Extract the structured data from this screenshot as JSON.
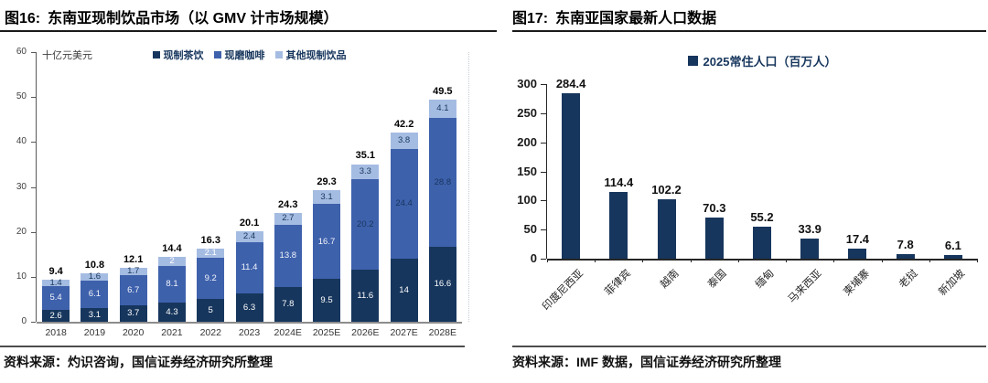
{
  "chart_data": [
    {
      "type": "bar",
      "stacked": true,
      "figure_label": "图16:",
      "title": "东南亚现制饮品市场（以 GMV 计市场规模）",
      "unit_label": "十亿元美元",
      "legend_position": "top",
      "ylim": [
        0,
        60
      ],
      "y_ticks": [
        0,
        10,
        20,
        30,
        40,
        50,
        60
      ],
      "grid": false,
      "categories": [
        "2018",
        "2019",
        "2020",
        "2021",
        "2022",
        "2023",
        "2024E",
        "2025E",
        "2026E",
        "2027E",
        "2028E"
      ],
      "series": [
        {
          "name": "现制茶饮",
          "color": "#17365D",
          "values": [
            2.6,
            3.1,
            3.7,
            4.3,
            5,
            6.3,
            7.8,
            9.5,
            11.6,
            14,
            16.6
          ],
          "labels": [
            "2.6",
            "3.1",
            "3.7",
            "4.3",
            "5",
            "6.3",
            "7.8",
            "9.5",
            "11.6",
            "14",
            "16.6"
          ],
          "label_colors": [
            "#ffffff",
            "#ffffff",
            "#ffffff",
            "#ffffff",
            "#ffffff",
            "#ffffff",
            "#ffffff",
            "#ffffff",
            "#ffffff",
            "#ffffff",
            "#ffffff"
          ]
        },
        {
          "name": "现磨咖啡",
          "color": "#3E61AC",
          "values": [
            5.4,
            6.1,
            6.7,
            8.1,
            9.2,
            11.4,
            13.8,
            16.7,
            20.2,
            24.4,
            28.8
          ],
          "labels": [
            "5.4",
            "6.1",
            "6.7",
            "8.1",
            "9.2",
            "11.4",
            "13.8",
            "16.7",
            "20.2",
            "24.4",
            "28.8"
          ],
          "label_colors": [
            "#f2f5fa",
            "#f2f5fa",
            "#f2f5fa",
            "#f2f5fa",
            "#f2f5fa",
            "#f2f5fa",
            "#f2f5fa",
            "#f2f5fa",
            "#17365D",
            "#17365D",
            "#17365D"
          ]
        },
        {
          "name": "其他现制饮品",
          "color": "#A5BCE2",
          "values": [
            1.4,
            1.6,
            1.7,
            2,
            2.1,
            2.4,
            2.7,
            3.1,
            3.3,
            3.8,
            4.1
          ],
          "labels": [
            "1.4",
            "1.6",
            "1.7",
            "2",
            "2.1",
            "2.4",
            "2.7",
            "3.1",
            "3.3",
            "3.8",
            "4.1"
          ],
          "label_colors": [
            "#17365D",
            "#17365D",
            "#17365D",
            "#ffffff",
            "#ffffff",
            "#17365D",
            "#17365D",
            "#17365D",
            "#17365D",
            "#17365D",
            "#17365D"
          ]
        }
      ],
      "totals": [
        "9.4",
        "10.8",
        "12.1",
        "14.4",
        "16.3",
        "20.1",
        "24.3",
        "29.3",
        "35.1",
        "42.2",
        "49.5"
      ],
      "source": "资料来源：灼识咨询，国信证券经济研究所整理"
    },
    {
      "type": "bar",
      "stacked": false,
      "figure_label": "图17:",
      "title": "东南亚国家最新人口数据",
      "legend": "2025常住人口（百万人）",
      "legend_position": "top",
      "ylim": [
        0,
        300
      ],
      "y_ticks": [
        0,
        50,
        100,
        150,
        200,
        250,
        300
      ],
      "grid": false,
      "bar_color": "#17365D",
      "categories": [
        "印度尼西亚",
        "菲律宾",
        "越南",
        "泰国",
        "缅甸",
        "马来西亚",
        "柬埔寨",
        "老挝",
        "新加坡"
      ],
      "values": [
        284.4,
        114.4,
        102.2,
        70.3,
        55.2,
        33.9,
        17.4,
        7.8,
        6.1
      ],
      "labels": [
        "284.4",
        "114.4",
        "102.2",
        "70.3",
        "55.2",
        "33.9",
        "17.4",
        "7.8",
        "6.1"
      ],
      "source": "资料来源：IMF 数据，国信证券经济研究所整理"
    }
  ],
  "style_colors": {
    "navy": "#17365D",
    "mid_blue": "#3E61AC",
    "light_blue": "#A5BCE2",
    "axis_gray": "#404040"
  }
}
